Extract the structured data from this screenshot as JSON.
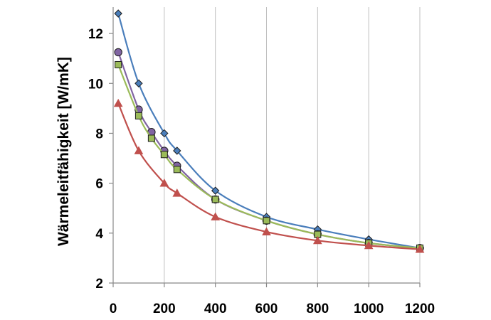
{
  "chart_data": {
    "type": "line",
    "title": "",
    "xlabel": "",
    "ylabel": "Wärmeleitfähigkeit [W/mK]",
    "xlim": [
      0,
      1200
    ],
    "ylim": [
      2,
      13
    ],
    "xticks": [
      0,
      200,
      400,
      600,
      800,
      1000,
      1200
    ],
    "yticks": [
      2,
      4,
      6,
      8,
      10,
      12
    ],
    "xtick_labels": [
      "0",
      "200",
      "400",
      "600",
      "800",
      "1000",
      "1200"
    ],
    "ytick_labels": [
      "2",
      "4",
      "6",
      "8",
      "10",
      "12"
    ],
    "grid": {
      "vertical": true,
      "horizontal": false
    },
    "legend": "none",
    "series": [
      {
        "marker": "diamond",
        "color": "#4a7ebb",
        "x": [
          20,
          100,
          200,
          250,
          400,
          600,
          800,
          1000,
          1200
        ],
        "y": [
          12.8,
          10.0,
          8.0,
          7.3,
          5.7,
          4.65,
          4.15,
          3.75,
          3.4
        ]
      },
      {
        "marker": "circle",
        "color": "#8064a2",
        "x": [
          20,
          100,
          150,
          200,
          250,
          400,
          600,
          800,
          1000,
          1200
        ],
        "y": [
          11.25,
          8.95,
          8.05,
          7.3,
          6.7,
          5.35,
          4.5,
          3.95,
          3.6,
          3.4
        ]
      },
      {
        "marker": "square",
        "color": "#9bbb59",
        "x": [
          20,
          100,
          150,
          200,
          250,
          400,
          600,
          800,
          1000,
          1200
        ],
        "y": [
          10.75,
          8.7,
          7.8,
          7.15,
          6.55,
          5.35,
          4.5,
          3.95,
          3.6,
          3.4
        ]
      },
      {
        "marker": "triangle",
        "color": "#c0504d",
        "x": [
          20,
          100,
          200,
          250,
          400,
          600,
          800,
          1000,
          1200
        ],
        "y": [
          9.2,
          7.3,
          6.0,
          5.6,
          4.65,
          4.05,
          3.7,
          3.5,
          3.35
        ]
      }
    ]
  }
}
